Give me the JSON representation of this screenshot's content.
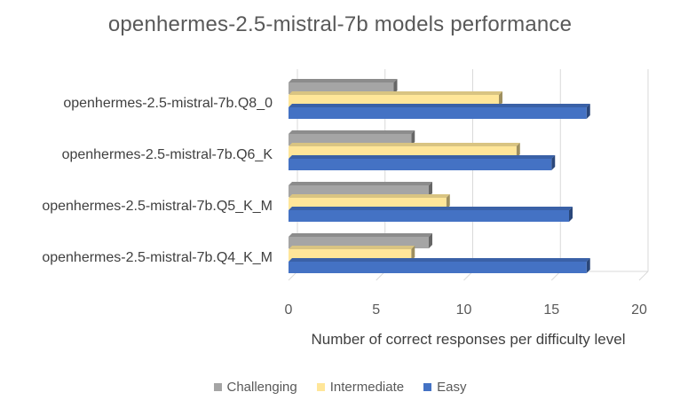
{
  "chart_data": {
    "type": "bar",
    "orientation": "horizontal",
    "style": "3d-clustered",
    "title": "openhermes-2.5-mistral-7b models performance",
    "xlabel": "Number of correct responses per difficulty level",
    "ylabel": "",
    "xlim": [
      0,
      20
    ],
    "xticks": [
      0,
      5,
      10,
      15,
      20
    ],
    "grid": true,
    "legend_position": "bottom",
    "categories": [
      "openhermes-2.5-mistral-7b.Q8_0",
      "openhermes-2.5-mistral-7b.Q6_K",
      "openhermes-2.5-mistral-7b.Q5_K_M",
      "openhermes-2.5-mistral-7b.Q4_K_M"
    ],
    "series": [
      {
        "name": "Challenging",
        "color": "#a5a5a5",
        "values": [
          6,
          7,
          8,
          8
        ]
      },
      {
        "name": "Intermediate",
        "color": "#ffe699",
        "values": [
          12,
          13,
          9,
          7
        ]
      },
      {
        "name": "Easy",
        "color": "#4472c4",
        "values": [
          17,
          15,
          16,
          17
        ]
      }
    ]
  }
}
